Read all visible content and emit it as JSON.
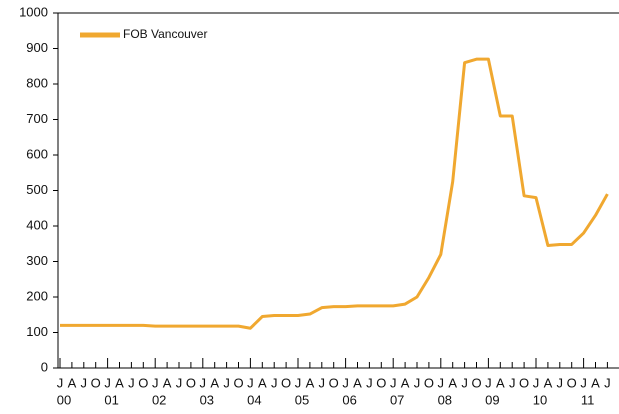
{
  "chart_data": {
    "type": "line",
    "categories": [
      "J",
      "A",
      "J",
      "O",
      "J",
      "A",
      "J",
      "O",
      "J",
      "A",
      "J",
      "O",
      "J",
      "A",
      "J",
      "O",
      "J",
      "A",
      "J",
      "O",
      "J",
      "A",
      "J",
      "O",
      "J",
      "A",
      "J",
      "O",
      "J",
      "A",
      "J",
      "O",
      "J",
      "A",
      "J",
      "O",
      "J",
      "A",
      "J",
      "O",
      "J",
      "A",
      "J",
      "O",
      "J",
      "A",
      "J"
    ],
    "year_labels": [
      "00",
      "01",
      "02",
      "03",
      "04",
      "05",
      "06",
      "07",
      "08",
      "09",
      "10",
      "11"
    ],
    "series": [
      {
        "name": "FOB Vancouver",
        "color": "#f0a830",
        "values": [
          120,
          120,
          120,
          120,
          120,
          120,
          120,
          120,
          118,
          118,
          118,
          118,
          118,
          118,
          118,
          118,
          112,
          145,
          148,
          148,
          148,
          152,
          170,
          173,
          173,
          175,
          175,
          175,
          175,
          180,
          200,
          255,
          320,
          525,
          860,
          870,
          870,
          710,
          710,
          485,
          480,
          345,
          348,
          348,
          380,
          430,
          490
        ]
      }
    ],
    "ylim": [
      0,
      1000
    ],
    "yticks": [
      0,
      100,
      200,
      300,
      400,
      500,
      600,
      700,
      800,
      900,
      1000
    ],
    "legend": "upper left"
  }
}
